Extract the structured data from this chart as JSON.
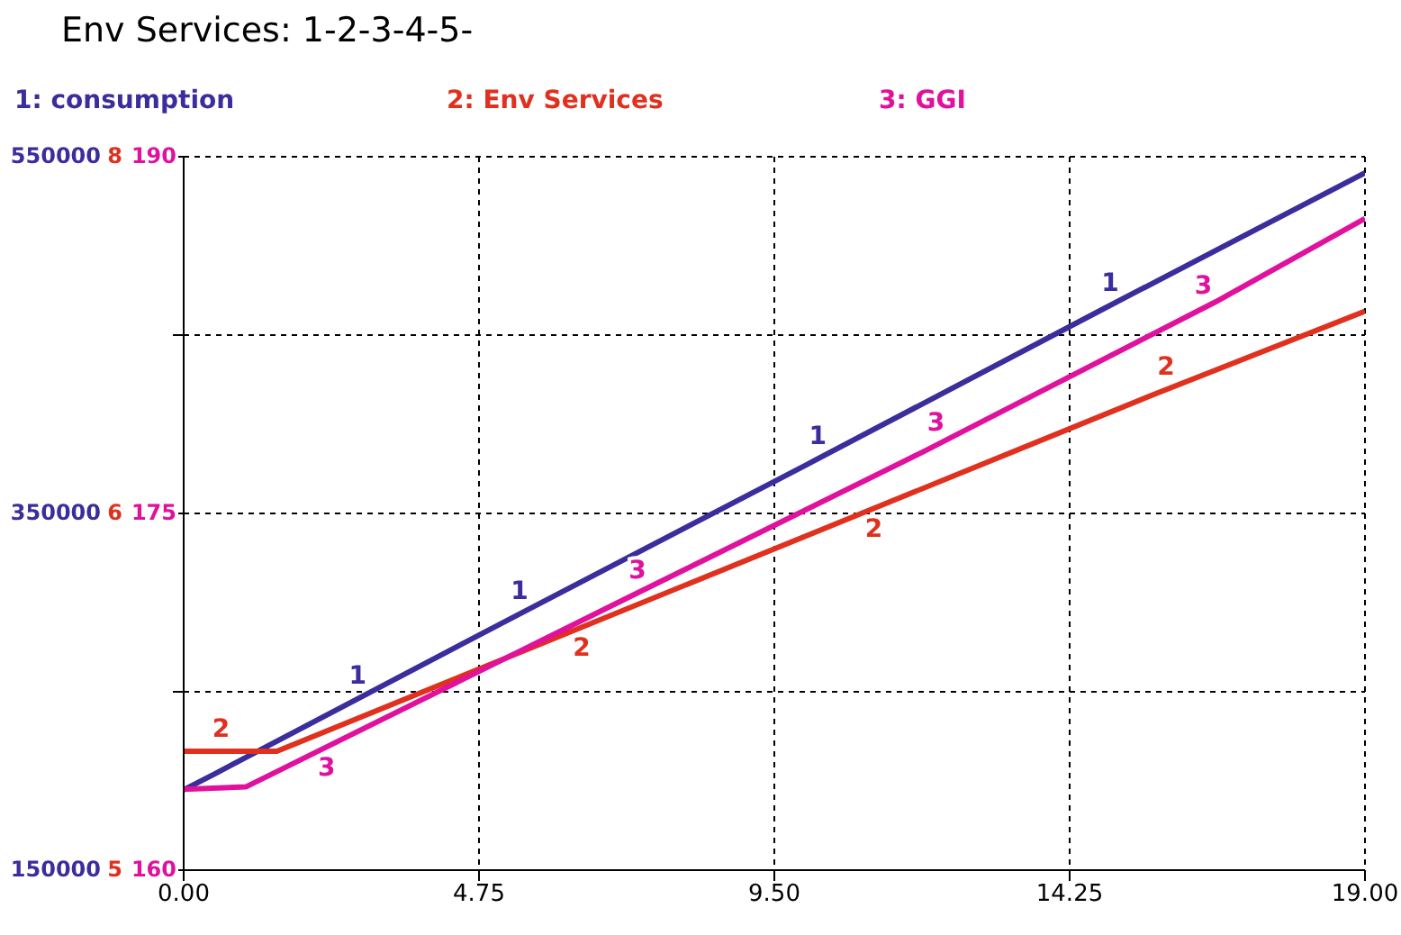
{
  "chart_data": {
    "type": "line",
    "title": "Env Services: 1-2-3-4-5-",
    "xlim": [
      0,
      19
    ],
    "xticks": [
      {
        "value": 0,
        "label": "0.00"
      },
      {
        "value": 4.75,
        "label": "4.75"
      },
      {
        "value": 9.5,
        "label": "9.50"
      },
      {
        "value": 14.25,
        "label": "14.25"
      },
      {
        "value": 19,
        "label": "19.00"
      }
    ],
    "ylim": [
      150000,
      550000
    ],
    "yticks": [
      150000,
      {
        "value": 250000,
        "label": null
      },
      350000,
      {
        "value": 450000,
        "label": null
      },
      550000
    ],
    "y2lim": [
      5,
      8
    ],
    "y2ticks": [
      5,
      {
        "value": 6.5,
        "label": "6"
      },
      8
    ],
    "y3lim": [
      160,
      190
    ],
    "y3ticks": [
      160,
      175,
      190
    ],
    "grid": true,
    "legend": "top",
    "line_style": "solid",
    "marker": "none",
    "series": [
      {
        "name": "1: consumption",
        "color": "#3a2d9c",
        "axis": "y",
        "x": [
          0,
          0.5,
          5.2,
          10,
          14.7,
          19
        ],
        "values": [
          195000,
          204000,
          290000,
          377000,
          463000,
          541000
        ]
      },
      {
        "name": "2: Env Services",
        "color": "#e0301e",
        "axis": "y2",
        "x": [
          0,
          1.5,
          6.2,
          10.9,
          15.6,
          19
        ],
        "values": [
          5.5,
          5.5,
          6.0,
          6.5,
          7.0,
          7.35
        ]
      },
      {
        "name": "3: GGI",
        "color": "#e0119d",
        "axis": "y3",
        "x": [
          0,
          1.0,
          7.1,
          11.9,
          16.6,
          19
        ],
        "values": [
          163.4,
          163.5,
          171.4,
          177.6,
          183.9,
          187.4
        ]
      }
    ],
    "annotations": [
      {
        "text": "1",
        "x": 2.8,
        "y": 246100
      },
      {
        "text": "1",
        "x": 5.4,
        "y": 293600
      },
      {
        "text": "1",
        "x": 10.2,
        "y": 380700
      },
      {
        "text": "1",
        "x": 14.9,
        "y": 466600
      },
      {
        "text": "2",
        "x": 0.6,
        "y": 216700
      },
      {
        "text": "2",
        "x": 6.4,
        "y": 286200
      },
      {
        "text": "2",
        "x": 11.1,
        "y": 352800
      },
      {
        "text": "2",
        "x": 15.8,
        "y": 419400
      },
      {
        "text": "3",
        "x": 2.3,
        "y": 219000
      },
      {
        "text": "3",
        "x": 7.3,
        "y": 305500
      },
      {
        "text": "3",
        "x": 12.1,
        "y": 388300
      },
      {
        "text": "3",
        "x": 16.4,
        "y": 465100
      }
    ]
  }
}
